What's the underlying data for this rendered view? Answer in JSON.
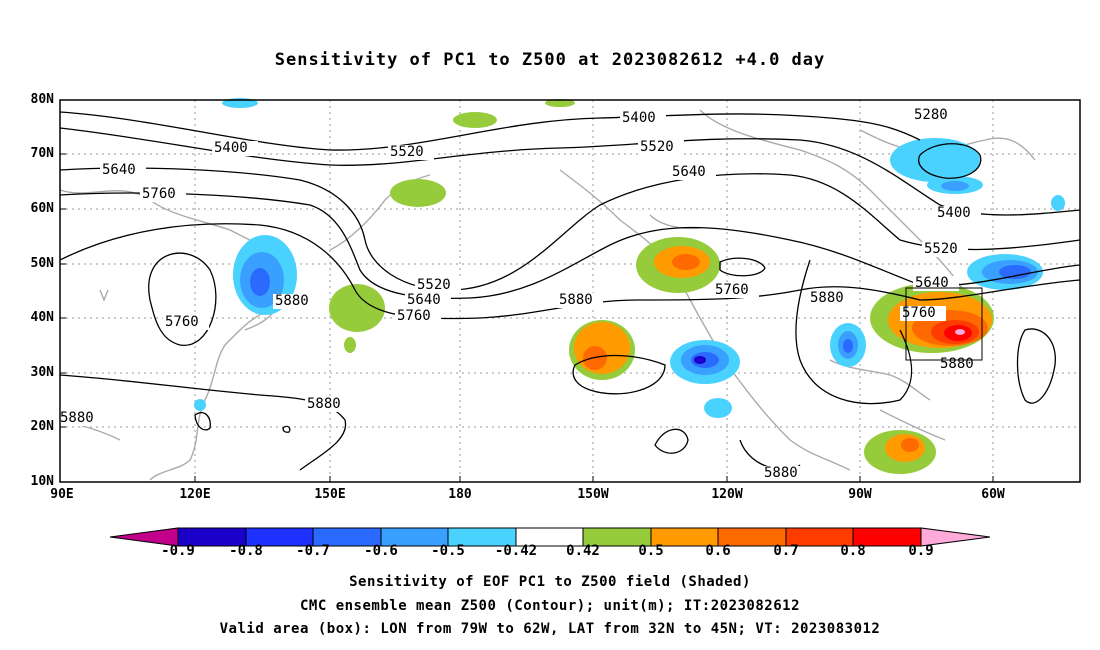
{
  "title": "Sensitivity of PC1 to Z500 at 2023082612 +4.0 day",
  "lat_labels": [
    "80N",
    "70N",
    "60N",
    "50N",
    "40N",
    "30N",
    "20N",
    "10N"
  ],
  "lon_labels": [
    "90E",
    "120E",
    "150E",
    "180",
    "150W",
    "120W",
    "90W",
    "60W"
  ],
  "colorbar": {
    "labels": [
      "-0.9",
      "-0.8",
      "-0.7",
      "-0.6",
      "-0.5",
      "-0.42",
      "0.42",
      "0.5",
      "0.6",
      "0.7",
      "0.8",
      "0.9"
    ],
    "colors": [
      "#c0008a",
      "#1a00c8",
      "#1e32ff",
      "#2a6aff",
      "#3aa0ff",
      "#4ad2ff",
      "#ffffff",
      "#96cc3c",
      "#ff9a00",
      "#ff6a00",
      "#ff3c00",
      "#ff0000",
      "#ffaad8"
    ]
  },
  "contour_labels": [
    "5400",
    "5520",
    "5640",
    "5760",
    "5880",
    "5280"
  ],
  "captions": {
    "line1": "Sensitivity of EOF PC1 to Z500 field (Shaded)",
    "line2": "CMC ensemble mean Z500 (Contour); unit(m); IT:2023082612",
    "line3": "Valid area (box): LON from 79W to 62W, LAT from 32N to 45N; VT: 2023083012"
  }
}
